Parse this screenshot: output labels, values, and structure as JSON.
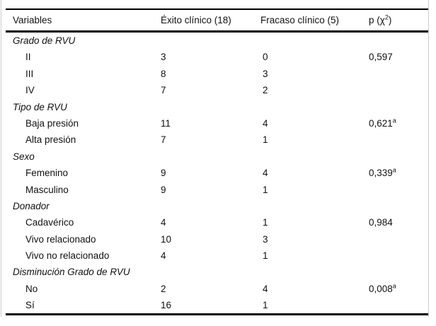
{
  "table": {
    "title_semantic": "Comparación de variables entre éxito y fracaso clínico",
    "columns": {
      "variables": "Variables",
      "exito": "Éxito clínico (18)",
      "fracaso": "Fracaso clínico (5)",
      "p_prefix": "p (χ",
      "p_sup": "2",
      "p_suffix": ")"
    },
    "rows": [
      {
        "type": "group",
        "label": "Grado de RVU"
      },
      {
        "type": "item",
        "label": "II",
        "exito": "3",
        "fracaso": "0",
        "p": "0,597",
        "p_sup": ""
      },
      {
        "type": "item",
        "label": "III",
        "exito": "8",
        "fracaso": "3"
      },
      {
        "type": "item",
        "label": "IV",
        "exito": "7",
        "fracaso": "2"
      },
      {
        "type": "group",
        "label": "Tipo de RVU"
      },
      {
        "type": "item",
        "label": "Baja presión",
        "exito": "11",
        "fracaso": "4",
        "p": "0,621",
        "p_sup": "a"
      },
      {
        "type": "item",
        "label": "Alta presión",
        "exito": "7",
        "fracaso": "1"
      },
      {
        "type": "group",
        "label": "Sexo"
      },
      {
        "type": "item",
        "label": "Femenino",
        "exito": "9",
        "fracaso": "4",
        "p": "0,339",
        "p_sup": "a"
      },
      {
        "type": "item",
        "label": "Masculino",
        "exito": "9",
        "fracaso": "1"
      },
      {
        "type": "group",
        "label": "Donador"
      },
      {
        "type": "item",
        "label": "Cadavérico",
        "exito": "4",
        "fracaso": "1",
        "p": "0,984",
        "p_sup": ""
      },
      {
        "type": "item",
        "label": "Vivo relacionado",
        "exito": "10",
        "fracaso": "3"
      },
      {
        "type": "item",
        "label": "Vivo no relacionado",
        "exito": "4",
        "fracaso": "1"
      },
      {
        "type": "group",
        "label": "Disminución Grado de RVU"
      },
      {
        "type": "item",
        "label": "No",
        "exito": "2",
        "fracaso": "4",
        "p": "0,008",
        "p_sup": "a"
      },
      {
        "type": "item",
        "label": "Sí",
        "exito": "16",
        "fracaso": "1"
      }
    ]
  },
  "colors": {
    "text": "#111111",
    "rule": "#000000",
    "frame": "#cccccc",
    "background": "#ffffff"
  }
}
